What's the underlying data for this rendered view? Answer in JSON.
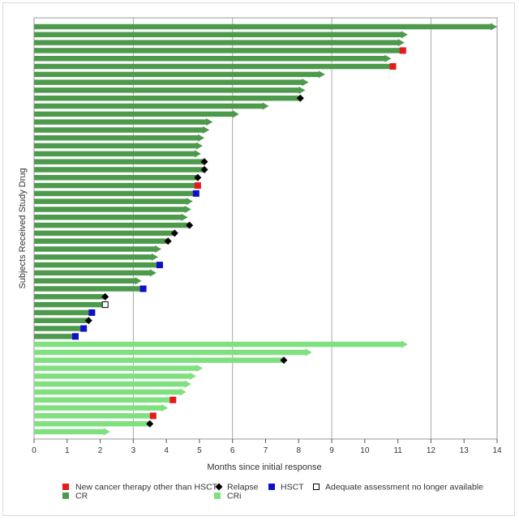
{
  "chart_data": {
    "type": "swimmer",
    "xlabel": "Months since initial response",
    "ylabel": "Subjects Received Study Drug",
    "xlim": [
      0,
      14
    ],
    "xticks": [
      0,
      1,
      2,
      3,
      4,
      5,
      6,
      7,
      8,
      9,
      10,
      11,
      12,
      13,
      14
    ],
    "grid_x": [
      3,
      6,
      9,
      12
    ],
    "legend_position": "bottom",
    "colors": {
      "cr": "#4d9a4d",
      "cri": "#7ee07e",
      "new_therapy": "#e41a1c",
      "relapse": "#000000",
      "hsct": "#1010c8",
      "adequate": "#ffffff"
    },
    "legend": {
      "new_therapy": "New cancer therapy other than HSCT",
      "relapse": "Relapse",
      "hsct": "HSCT",
      "adequate": "Adequate assessment no longer available",
      "cr": "CR",
      "cri": "CRi"
    },
    "subjects": [
      {
        "response": "CR",
        "duration": 14.0,
        "ongoing": true
      },
      {
        "response": "CR",
        "duration": 11.3,
        "ongoing": true
      },
      {
        "response": "CR",
        "duration": 11.2,
        "ongoing": true
      },
      {
        "response": "CR",
        "duration": 11.15,
        "ongoing": false,
        "event": "new_therapy",
        "event_at": 11.15
      },
      {
        "response": "CR",
        "duration": 10.8,
        "ongoing": true
      },
      {
        "response": "CR",
        "duration": 10.85,
        "ongoing": false,
        "event": "new_therapy",
        "event_at": 10.85
      },
      {
        "response": "CR",
        "duration": 8.8,
        "ongoing": true
      },
      {
        "response": "CR",
        "duration": 8.3,
        "ongoing": true
      },
      {
        "response": "CR",
        "duration": 8.2,
        "ongoing": true
      },
      {
        "response": "CR",
        "duration": 8.05,
        "ongoing": false,
        "event": "relapse",
        "event_at": 8.05
      },
      {
        "response": "CR",
        "duration": 7.1,
        "ongoing": true
      },
      {
        "response": "CR",
        "duration": 6.2,
        "ongoing": true
      },
      {
        "response": "CR",
        "duration": 5.4,
        "ongoing": true
      },
      {
        "response": "CR",
        "duration": 5.3,
        "ongoing": true
      },
      {
        "response": "CR",
        "duration": 5.15,
        "ongoing": true
      },
      {
        "response": "CR",
        "duration": 5.1,
        "ongoing": true
      },
      {
        "response": "CR",
        "duration": 5.05,
        "ongoing": true
      },
      {
        "response": "CR",
        "duration": 5.15,
        "ongoing": false,
        "event": "relapse",
        "event_at": 5.15
      },
      {
        "response": "CR",
        "duration": 5.15,
        "ongoing": false,
        "event": "relapse",
        "event_at": 5.15
      },
      {
        "response": "CR",
        "duration": 4.95,
        "ongoing": false,
        "event": "relapse",
        "event_at": 4.95
      },
      {
        "response": "CR",
        "duration": 4.95,
        "ongoing": false,
        "event": "new_therapy",
        "event_at": 4.95
      },
      {
        "response": "CR",
        "duration": 4.9,
        "ongoing": false,
        "event": "hsct",
        "event_at": 4.9
      },
      {
        "response": "CR",
        "duration": 4.8,
        "ongoing": true
      },
      {
        "response": "CR",
        "duration": 4.75,
        "ongoing": true
      },
      {
        "response": "CR",
        "duration": 4.65,
        "ongoing": true
      },
      {
        "response": "CR",
        "duration": 4.7,
        "ongoing": false,
        "event": "relapse",
        "event_at": 4.7
      },
      {
        "response": "CR",
        "duration": 4.25,
        "ongoing": false,
        "event": "relapse",
        "event_at": 4.25
      },
      {
        "response": "CR",
        "duration": 4.05,
        "ongoing": false,
        "event": "relapse",
        "event_at": 4.05
      },
      {
        "response": "CR",
        "duration": 3.85,
        "ongoing": true
      },
      {
        "response": "CR",
        "duration": 3.75,
        "ongoing": true
      },
      {
        "response": "CR",
        "duration": 3.8,
        "ongoing": false,
        "event": "hsct",
        "event_at": 3.8
      },
      {
        "response": "CR",
        "duration": 3.7,
        "ongoing": true
      },
      {
        "response": "CR",
        "duration": 3.25,
        "ongoing": true
      },
      {
        "response": "CR",
        "duration": 3.3,
        "ongoing": false,
        "event": "hsct",
        "event_at": 3.3
      },
      {
        "response": "CR",
        "duration": 2.15,
        "ongoing": false,
        "event": "relapse",
        "event_at": 2.15
      },
      {
        "response": "CR",
        "duration": 2.15,
        "ongoing": false,
        "event": "adequate",
        "event_at": 2.15
      },
      {
        "response": "CR",
        "duration": 1.75,
        "ongoing": false,
        "event": "hsct",
        "event_at": 1.75
      },
      {
        "response": "CR",
        "duration": 1.65,
        "ongoing": false,
        "event": "relapse",
        "event_at": 1.65
      },
      {
        "response": "CR",
        "duration": 1.5,
        "ongoing": false,
        "event": "hsct",
        "event_at": 1.5
      },
      {
        "response": "CR",
        "duration": 1.25,
        "ongoing": false,
        "event": "hsct",
        "event_at": 1.25
      },
      {
        "response": "CRi",
        "duration": 11.3,
        "ongoing": true
      },
      {
        "response": "CRi",
        "duration": 8.4,
        "ongoing": true
      },
      {
        "response": "CRi",
        "duration": 7.55,
        "ongoing": false,
        "event": "relapse",
        "event_at": 7.55
      },
      {
        "response": "CRi",
        "duration": 5.1,
        "ongoing": true
      },
      {
        "response": "CRi",
        "duration": 4.9,
        "ongoing": true
      },
      {
        "response": "CRi",
        "duration": 4.75,
        "ongoing": true
      },
      {
        "response": "CRi",
        "duration": 4.6,
        "ongoing": true
      },
      {
        "response": "CRi",
        "duration": 4.2,
        "ongoing": false,
        "event": "new_therapy",
        "event_at": 4.2
      },
      {
        "response": "CRi",
        "duration": 4.05,
        "ongoing": true
      },
      {
        "response": "CRi",
        "duration": 3.6,
        "ongoing": false,
        "event": "new_therapy",
        "event_at": 3.6
      },
      {
        "response": "CRi",
        "duration": 3.5,
        "ongoing": false,
        "event": "relapse",
        "event_at": 3.5
      },
      {
        "response": "CRi",
        "duration": 2.3,
        "ongoing": true
      }
    ]
  }
}
